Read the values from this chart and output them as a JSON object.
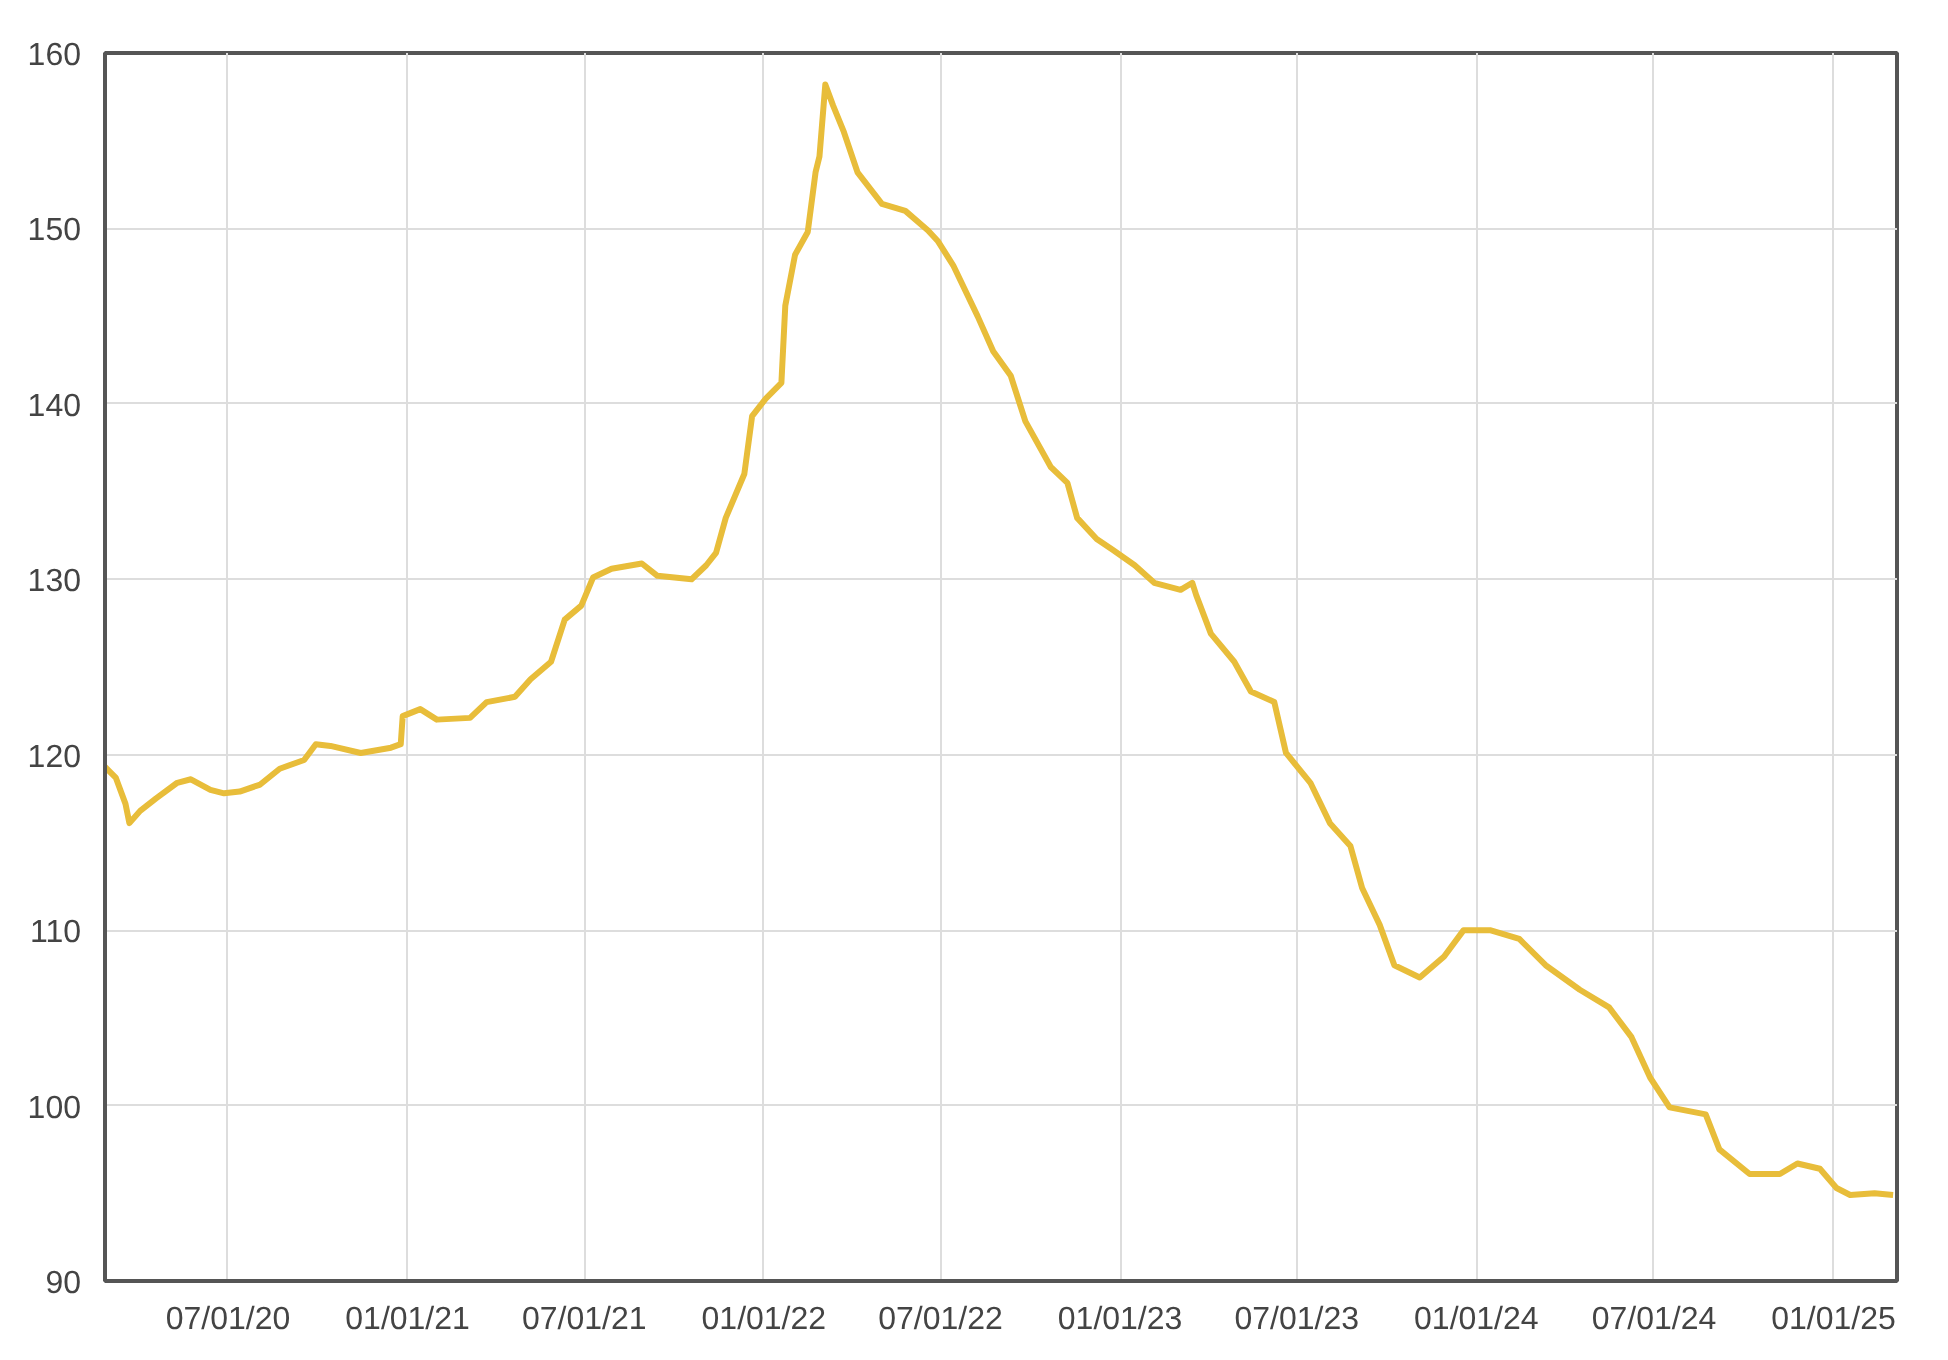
{
  "chart_data": {
    "type": "line",
    "x": [
      "2020-02-26",
      "2020-03-08",
      "2020-03-18",
      "2020-03-22",
      "2020-04-02",
      "2020-04-18",
      "2020-05-10",
      "2020-05-24",
      "2020-06-13",
      "2020-06-27",
      "2020-07-13",
      "2020-08-03",
      "2020-08-23",
      "2020-09-17",
      "2020-09-29",
      "2020-10-14",
      "2020-11-14",
      "2020-12-15",
      "2020-12-25",
      "2020-12-27",
      "2021-01-14",
      "2021-01-31",
      "2021-03-06",
      "2021-03-23",
      "2021-04-21",
      "2021-05-07",
      "2021-05-28",
      "2021-06-11",
      "2021-06-28",
      "2021-07-10",
      "2021-07-29",
      "2021-08-29",
      "2021-09-14",
      "2021-10-19",
      "2021-11-03",
      "2021-11-13",
      "2021-11-23",
      "2021-12-12",
      "2021-12-20",
      "2022-01-03",
      "2022-01-19",
      "2022-01-23",
      "2022-02-02",
      "2022-02-15",
      "2022-02-23",
      "2022-02-27",
      "2022-03-05",
      "2022-03-13",
      "2022-03-24",
      "2022-04-07",
      "2022-05-02",
      "2022-05-26",
      "2022-06-18",
      "2022-06-28",
      "2022-07-14",
      "2022-08-08",
      "2022-08-24",
      "2022-09-11",
      "2022-09-26",
      "2022-10-22",
      "2022-11-08",
      "2022-11-18",
      "2022-12-08",
      "2022-12-24",
      "2023-01-16",
      "2023-02-05",
      "2023-03-04",
      "2023-03-16",
      "2023-03-20",
      "2023-04-04",
      "2023-04-28",
      "2023-05-15",
      "2023-06-08",
      "2023-06-20",
      "2023-07-15",
      "2023-08-04",
      "2023-08-25",
      "2023-09-06",
      "2023-09-24",
      "2023-10-09",
      "2023-11-04",
      "2023-11-29",
      "2023-12-19",
      "2024-01-15",
      "2024-02-14",
      "2024-03-12",
      "2024-04-16",
      "2024-05-16",
      "2024-06-08",
      "2024-06-27",
      "2024-07-17",
      "2024-08-23",
      "2024-09-06",
      "2024-10-07",
      "2024-11-07",
      "2024-11-25",
      "2024-12-18",
      "2025-01-04",
      "2025-01-18",
      "2025-02-12",
      "2025-03-03"
    ],
    "series": [
      {
        "color": "#e8bd3a",
        "values": [
          119.3,
          118.7,
          117.2,
          116.1,
          116.8,
          117.5,
          118.4,
          118.6,
          118.0,
          117.8,
          117.9,
          118.3,
          119.2,
          119.7,
          120.6,
          120.5,
          120.1,
          120.4,
          120.6,
          122.2,
          122.6,
          122.0,
          122.1,
          123.0,
          123.3,
          124.3,
          125.3,
          127.7,
          128.5,
          130.1,
          130.6,
          130.9,
          130.2,
          130.0,
          130.8,
          131.5,
          133.5,
          136.0,
          139.3,
          140.3,
          141.2,
          145.6,
          148.5,
          149.8,
          153.2,
          154.1,
          158.2,
          157.0,
          155.5,
          153.2,
          151.4,
          151.0,
          149.9,
          149.3,
          147.9,
          145.0,
          143.0,
          141.6,
          139.0,
          136.4,
          135.5,
          133.5,
          132.3,
          131.7,
          130.8,
          129.8,
          129.4,
          129.8,
          129.1,
          126.9,
          125.3,
          123.6,
          123.0,
          120.1,
          118.4,
          116.1,
          114.8,
          112.4,
          110.3,
          108.0,
          107.3,
          108.5,
          110.0,
          110.0,
          109.5,
          108.0,
          106.6,
          105.6,
          103.9,
          101.6,
          99.9,
          99.5,
          97.5,
          96.1,
          96.1,
          96.7,
          96.4,
          95.3,
          94.9,
          95.0,
          94.9
        ]
      }
    ],
    "xlim": [
      "2020-02-26",
      "2025-03-07"
    ],
    "xticks": [
      {
        "value": "2020-07-01",
        "label": "07/01/20"
      },
      {
        "value": "2021-01-01",
        "label": "01/01/21"
      },
      {
        "value": "2021-07-01",
        "label": "07/01/21"
      },
      {
        "value": "2022-01-01",
        "label": "01/01/22"
      },
      {
        "value": "2022-07-01",
        "label": "07/01/22"
      },
      {
        "value": "2023-01-01",
        "label": "01/01/23"
      },
      {
        "value": "2023-07-01",
        "label": "07/01/23"
      },
      {
        "value": "2024-01-01",
        "label": "01/01/24"
      },
      {
        "value": "2024-07-01",
        "label": "07/01/24"
      },
      {
        "value": "2025-01-01",
        "label": "01/01/25"
      }
    ],
    "ylim": [
      90,
      160
    ],
    "yticks": [
      90,
      100,
      110,
      120,
      130,
      140,
      150,
      160
    ],
    "grid": true,
    "marker": "none",
    "line_style": "solid"
  }
}
